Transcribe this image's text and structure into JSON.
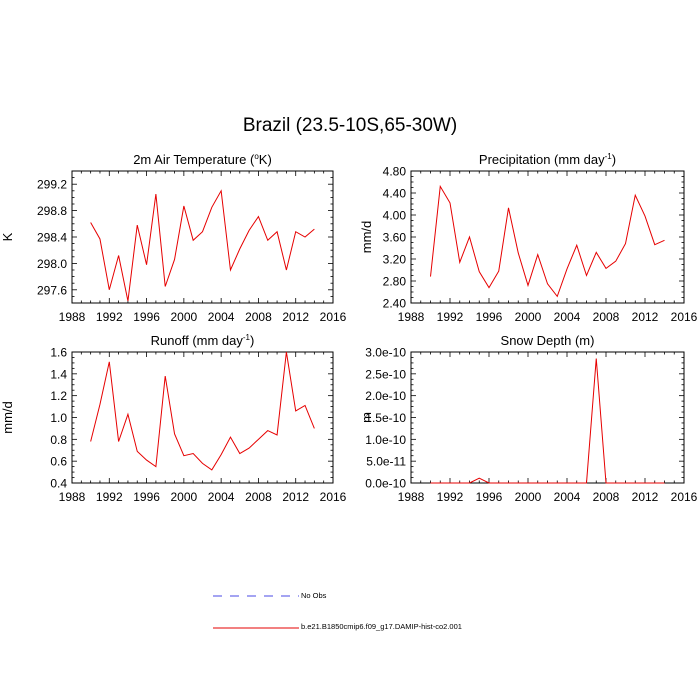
{
  "title": "Brazil (23.5-10S,65-30W)",
  "legend": [
    {
      "label": "No Obs",
      "color": "#4a4ae6",
      "style": "dashed"
    },
    {
      "label": "b.e21.B1850cmip6.f09_g17.DAMIP-hist-co2.001",
      "color": "#e60000",
      "style": "solid"
    }
  ],
  "chart_data": [
    {
      "type": "line",
      "title": "2m Air Temperature (°K)",
      "title_parts": [
        "2m Air Temperature (",
        "o",
        "K)"
      ],
      "xlabel": "",
      "ylabel": "K",
      "xlim": [
        1988,
        2016
      ],
      "ylim": [
        297.4,
        299.4
      ],
      "xticks": [
        1988,
        1992,
        1996,
        2000,
        2004,
        2008,
        2012,
        2016
      ],
      "yticks": [
        297.6,
        298.0,
        298.4,
        298.8,
        299.2
      ],
      "ytick_labels": [
        "297.6",
        "298.0",
        "298.4",
        "298.8",
        "299.2"
      ],
      "x": [
        1990,
        1991,
        1992,
        1993,
        1994,
        1995,
        1996,
        1997,
        1998,
        1999,
        2000,
        2001,
        2002,
        2003,
        2004,
        2005,
        2006,
        2007,
        2008,
        2009,
        2010,
        2011,
        2012,
        2013,
        2014
      ],
      "series": [
        {
          "values": [
            298.62,
            298.37,
            297.6,
            298.12,
            297.43,
            298.58,
            297.98,
            299.05,
            297.65,
            298.06,
            298.87,
            298.35,
            298.48,
            298.85,
            299.1,
            297.9,
            298.22,
            298.5,
            298.71,
            298.35,
            298.48,
            297.9,
            298.48,
            298.4,
            298.52
          ],
          "color": "#e60000"
        }
      ]
    },
    {
      "type": "line",
      "title": "Precipitation (mm day-1)",
      "title_parts": [
        "Precipitation (mm day",
        "-1",
        ")"
      ],
      "xlabel": "",
      "ylabel": "mm/d",
      "xlim": [
        1988,
        2016
      ],
      "ylim": [
        2.4,
        4.8
      ],
      "xticks": [
        1988,
        1992,
        1996,
        2000,
        2004,
        2008,
        2012,
        2016
      ],
      "yticks": [
        2.4,
        2.8,
        3.2,
        3.6,
        4.0,
        4.4,
        4.8
      ],
      "ytick_labels": [
        "2.40",
        "2.80",
        "3.20",
        "3.60",
        "4.00",
        "4.40",
        "4.80"
      ],
      "x": [
        1990,
        1991,
        1992,
        1993,
        1994,
        1995,
        1996,
        1997,
        1998,
        1999,
        2000,
        2001,
        2002,
        2003,
        2004,
        2005,
        2006,
        2007,
        2008,
        2009,
        2010,
        2011,
        2012,
        2013,
        2014
      ],
      "series": [
        {
          "values": [
            2.88,
            4.52,
            4.22,
            3.14,
            3.6,
            2.97,
            2.68,
            2.98,
            4.13,
            3.31,
            2.72,
            3.28,
            2.75,
            2.52,
            3.02,
            3.45,
            2.9,
            3.32,
            3.03,
            3.16,
            3.48,
            4.36,
            3.98,
            3.46,
            3.54
          ],
          "color": "#e60000"
        }
      ]
    },
    {
      "type": "line",
      "title": "Runoff (mm day-1)",
      "title_parts": [
        "Runoff (mm day",
        "-1",
        ")"
      ],
      "xlabel": "",
      "ylabel": "mm/d",
      "xlim": [
        1988,
        2016
      ],
      "ylim": [
        0.4,
        1.6
      ],
      "xticks": [
        1988,
        1992,
        1996,
        2000,
        2004,
        2008,
        2012,
        2016
      ],
      "yticks": [
        0.4,
        0.6,
        0.8,
        1.0,
        1.2,
        1.4,
        1.6
      ],
      "ytick_labels": [
        "0.4",
        "0.6",
        "0.8",
        "1.0",
        "1.2",
        "1.4",
        "1.6"
      ],
      "x": [
        1990,
        1991,
        1992,
        1993,
        1994,
        1995,
        1996,
        1997,
        1998,
        1999,
        2000,
        2001,
        2002,
        2003,
        2004,
        2005,
        2006,
        2007,
        2008,
        2009,
        2010,
        2011,
        2012,
        2013,
        2014
      ],
      "series": [
        {
          "values": [
            0.78,
            1.12,
            1.51,
            0.78,
            1.03,
            0.69,
            0.61,
            0.55,
            1.38,
            0.85,
            0.65,
            0.67,
            0.58,
            0.52,
            0.66,
            0.82,
            0.67,
            0.72,
            0.8,
            0.88,
            0.84,
            1.6,
            1.06,
            1.11,
            0.9
          ],
          "color": "#e60000"
        }
      ]
    },
    {
      "type": "line",
      "title": "Snow Depth (m)",
      "title_parts": [
        "Snow Depth (m)",
        "",
        ""
      ],
      "xlabel": "",
      "ylabel": "m",
      "xlim": [
        1988,
        2016
      ],
      "ylim": [
        0,
        3e-10
      ],
      "xticks": [
        1988,
        1992,
        1996,
        2000,
        2004,
        2008,
        2012,
        2016
      ],
      "yticks": [
        0,
        5e-11,
        1e-10,
        1.5e-10,
        2e-10,
        2.5e-10,
        3e-10
      ],
      "ytick_labels": [
        "0.0e-10",
        "5.0e-11",
        "1.0e-10",
        "1.5e-10",
        "2.0e-10",
        "2.5e-10",
        "3.0e-10"
      ],
      "x": [
        1990,
        1991,
        1992,
        1993,
        1994,
        1995,
        1996,
        1997,
        1998,
        1999,
        2000,
        2001,
        2002,
        2003,
        2004,
        2005,
        2006,
        2007,
        2008,
        2009,
        2010,
        2011,
        2012,
        2013,
        2014
      ],
      "series": [
        {
          "values": [
            0,
            0,
            0,
            0,
            0,
            1.1e-11,
            0,
            0,
            0,
            0,
            0,
            0,
            0,
            0,
            0,
            0,
            0,
            2.85e-10,
            0,
            0,
            0,
            0,
            0,
            0,
            0
          ],
          "color": "#e60000"
        }
      ]
    }
  ]
}
